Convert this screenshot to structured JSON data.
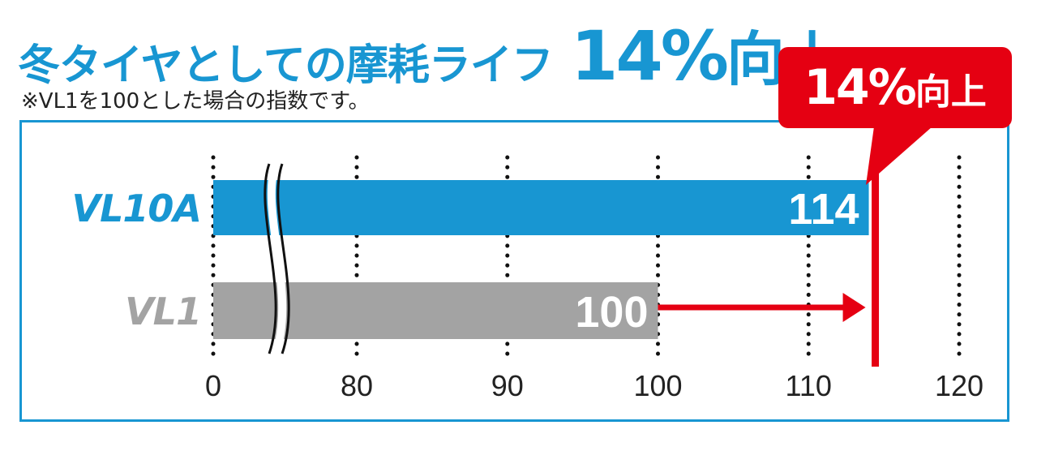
{
  "header": {
    "title": "冬タイヤとしての摩耗ライフ",
    "title_highlight_number": "14%",
    "title_highlight_suffix": "向上",
    "note": "※VL1を100とした場合の指数です。"
  },
  "callout": {
    "number": "14%",
    "text": "向上"
  },
  "colors": {
    "accent_blue": "#1896d2",
    "bar_gray": "#a3a3a3",
    "highlight_red": "#e50012"
  },
  "chart_data": {
    "type": "bar",
    "orientation": "horizontal",
    "categories": [
      "VL10A",
      "VL1"
    ],
    "values": [
      114,
      100
    ],
    "bar_colors": [
      "#1896d2",
      "#a3a3a3"
    ],
    "x_ticks": [
      0,
      80,
      90,
      100,
      110,
      120
    ],
    "x_axis_break": [
      0,
      80
    ],
    "xlim": [
      80,
      120
    ],
    "grid": true,
    "gridline_style": "dotted",
    "improvement_arrow": {
      "from": 100,
      "to": 114
    },
    "reference_line": 114
  }
}
